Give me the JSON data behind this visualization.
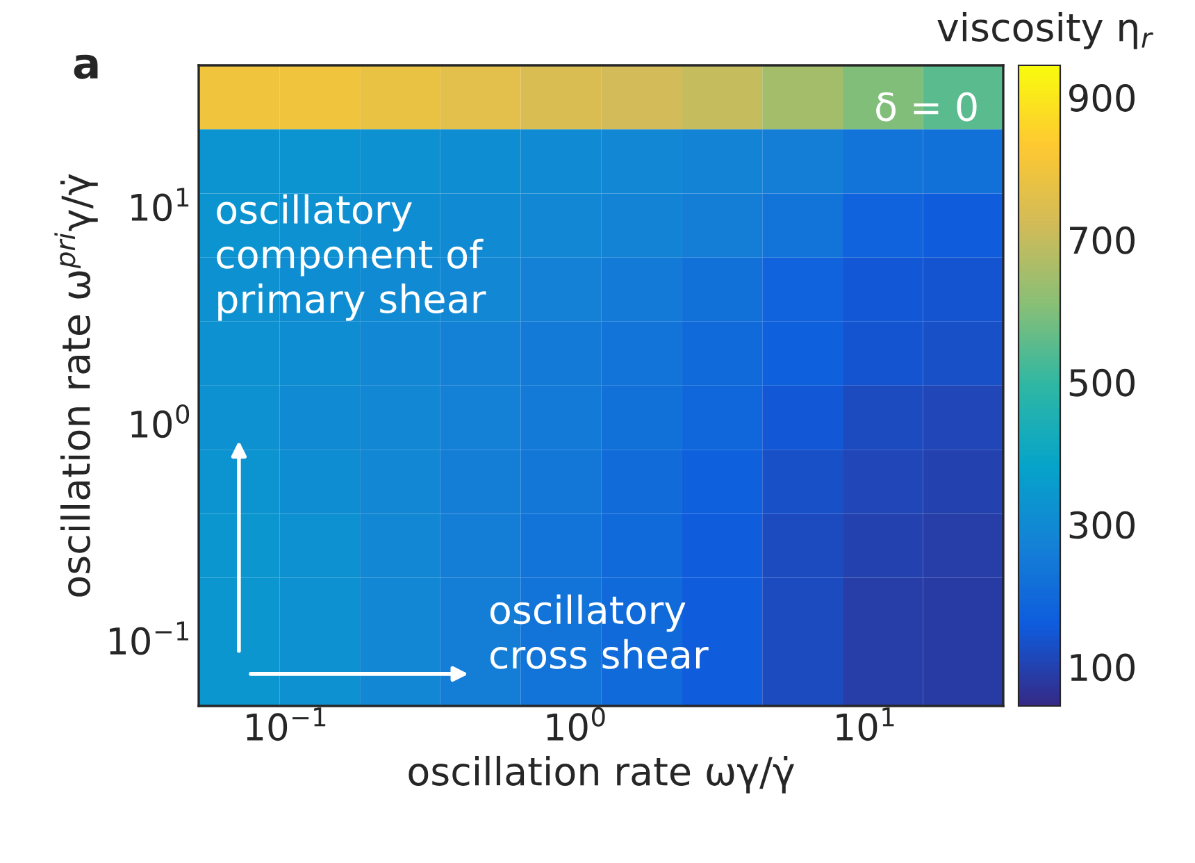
{
  "chart_data": {
    "type": "heatmap",
    "title": "a",
    "xlabel": "oscillation rate ωγ/γ̇",
    "ylabel": "oscillation rate ω$^{pri}$γ/γ̇",
    "clabel": "viscosity η$_{r}$",
    "log": "xy",
    "xlim": [
      0.05,
      30
    ],
    "ylim": [
      0.05,
      45
    ],
    "xticks": [
      {
        "value": 0.1,
        "label": "10$^{−1}$"
      },
      {
        "value": 1,
        "label": "10$^{0}$"
      },
      {
        "value": 10,
        "label": "10$^{1}$"
      }
    ],
    "yticks": [
      {
        "value": 0.1,
        "label": "10$^{−1}$"
      },
      {
        "value": 1,
        "label": "10$^{0}$"
      },
      {
        "value": 10,
        "label": "10$^{1}$"
      }
    ],
    "x": [
      0.069,
      0.131,
      0.248,
      0.47,
      0.89,
      1.69,
      3.2,
      6.1,
      11.5,
      21.8
    ],
    "y": [
      32,
      16.2,
      8.2,
      4.16,
      2.11,
      1.07,
      0.54,
      0.274,
      0.139,
      0.07
    ],
    "cells": [
      [
        800,
        800,
        780,
        760,
        740,
        720,
        700,
        650,
        600,
        550
      ],
      [
        330,
        330,
        320,
        310,
        300,
        290,
        280,
        260,
        230,
        220
      ],
      [
        330,
        320,
        310,
        300,
        290,
        280,
        260,
        230,
        180,
        160
      ],
      [
        320,
        310,
        300,
        290,
        270,
        250,
        220,
        180,
        150,
        140
      ],
      [
        320,
        310,
        290,
        270,
        250,
        230,
        200,
        170,
        140,
        130
      ],
      [
        320,
        300,
        290,
        270,
        250,
        220,
        190,
        150,
        120,
        110
      ],
      [
        330,
        310,
        290,
        260,
        240,
        210,
        170,
        130,
        110,
        100
      ],
      [
        340,
        320,
        290,
        260,
        230,
        200,
        160,
        120,
        100,
        90
      ],
      [
        340,
        320,
        290,
        260,
        230,
        200,
        160,
        120,
        90,
        85
      ],
      [
        340,
        320,
        290,
        260,
        230,
        200,
        160,
        120,
        90,
        85
      ]
    ],
    "clim": [
      45,
      945
    ],
    "cticks": [
      100,
      300,
      500,
      700,
      900
    ],
    "annotations": [
      "δ = 0",
      "oscillatory\ncomponent of\nprimary shear",
      "oscillatory\ncross shear"
    ],
    "grid": false
  }
}
